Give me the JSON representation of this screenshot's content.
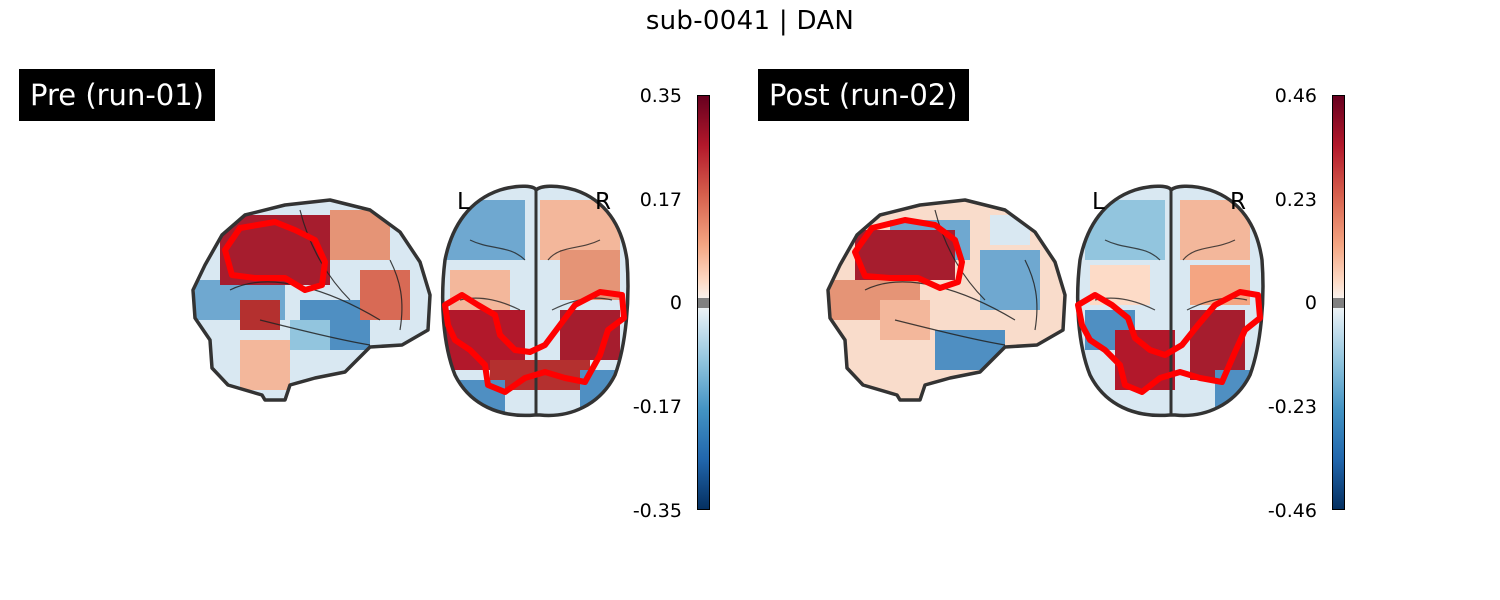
{
  "title": "sub-0041 | DAN",
  "panels": [
    {
      "label": "Pre (run-01)",
      "left_label": "L",
      "right_label": "R",
      "colorbar": {
        "max": "0.35",
        "upper": "0.17",
        "zero": "0",
        "lower": "-0.17",
        "min": "-0.35"
      }
    },
    {
      "label": "Post (run-02)",
      "left_label": "L",
      "right_label": "R",
      "colorbar": {
        "max": "0.46",
        "upper": "0.23",
        "zero": "0",
        "lower": "-0.23",
        "min": "-0.46"
      }
    }
  ],
  "colors": {
    "outline": "#ff0000",
    "positive": "#b2182b",
    "negative": "#2166ac",
    "brain_edge": "#333333"
  }
}
